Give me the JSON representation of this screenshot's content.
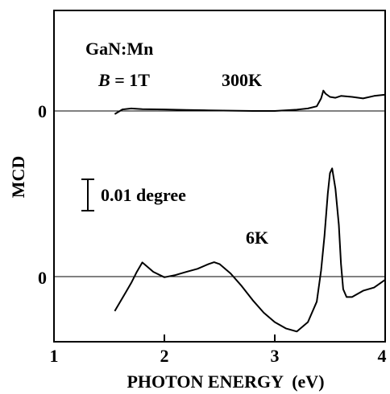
{
  "chart_data": {
    "type": "line",
    "title": "",
    "xlabel": "PHOTON ENERGY  (eV)",
    "ylabel": "MCD",
    "xlim": [
      1,
      4
    ],
    "x_ticks": [
      "1",
      "2",
      "3",
      "4"
    ],
    "y_zero_labels": [
      "0",
      "0"
    ],
    "grid": false,
    "legend": "none",
    "annotations": {
      "material": "GaN:Mn",
      "field_symbol": "B",
      "field_value": " = 1T",
      "scale_bar": "0.01 degree",
      "label_300k": "300K",
      "label_6k": "6K"
    },
    "series": [
      {
        "name": "300K",
        "unit": "degree",
        "x": [
          1.55,
          1.62,
          1.7,
          1.8,
          2.0,
          2.2,
          2.4,
          2.6,
          2.8,
          3.0,
          3.2,
          3.3,
          3.38,
          3.42,
          3.44,
          3.46,
          3.5,
          3.55,
          3.6,
          3.7,
          3.8,
          3.9,
          4.0
        ],
        "y": [
          -0.001,
          0.0005,
          0.0008,
          0.0006,
          0.0005,
          0.0003,
          0.0002,
          0.0001,
          0.0,
          0.0,
          0.0004,
          0.0008,
          0.0015,
          0.004,
          0.0065,
          0.0055,
          0.0045,
          0.0042,
          0.0048,
          0.0045,
          0.004,
          0.0048,
          0.0052
        ]
      },
      {
        "name": "6K",
        "unit": "degree",
        "x": [
          1.55,
          1.6,
          1.65,
          1.7,
          1.75,
          1.8,
          1.85,
          1.9,
          2.0,
          2.1,
          2.2,
          2.3,
          2.4,
          2.45,
          2.5,
          2.6,
          2.7,
          2.8,
          2.9,
          3.0,
          3.1,
          3.2,
          3.3,
          3.38,
          3.42,
          3.45,
          3.48,
          3.5,
          3.52,
          3.55,
          3.58,
          3.6,
          3.62,
          3.65,
          3.7,
          3.8,
          3.9,
          4.0
        ],
        "y": [
          -0.011,
          -0.008,
          -0.005,
          -0.002,
          0.0015,
          0.0045,
          0.003,
          0.0015,
          -0.0002,
          0.0005,
          0.0015,
          0.0025,
          0.004,
          0.0046,
          0.004,
          0.001,
          -0.003,
          -0.0075,
          -0.0115,
          -0.0145,
          -0.0165,
          -0.0175,
          -0.0145,
          -0.008,
          0.002,
          0.013,
          0.0265,
          0.033,
          0.0345,
          0.028,
          0.0165,
          0.004,
          -0.004,
          -0.0065,
          -0.0065,
          -0.0045,
          -0.0035,
          -0.001
        ]
      }
    ]
  }
}
